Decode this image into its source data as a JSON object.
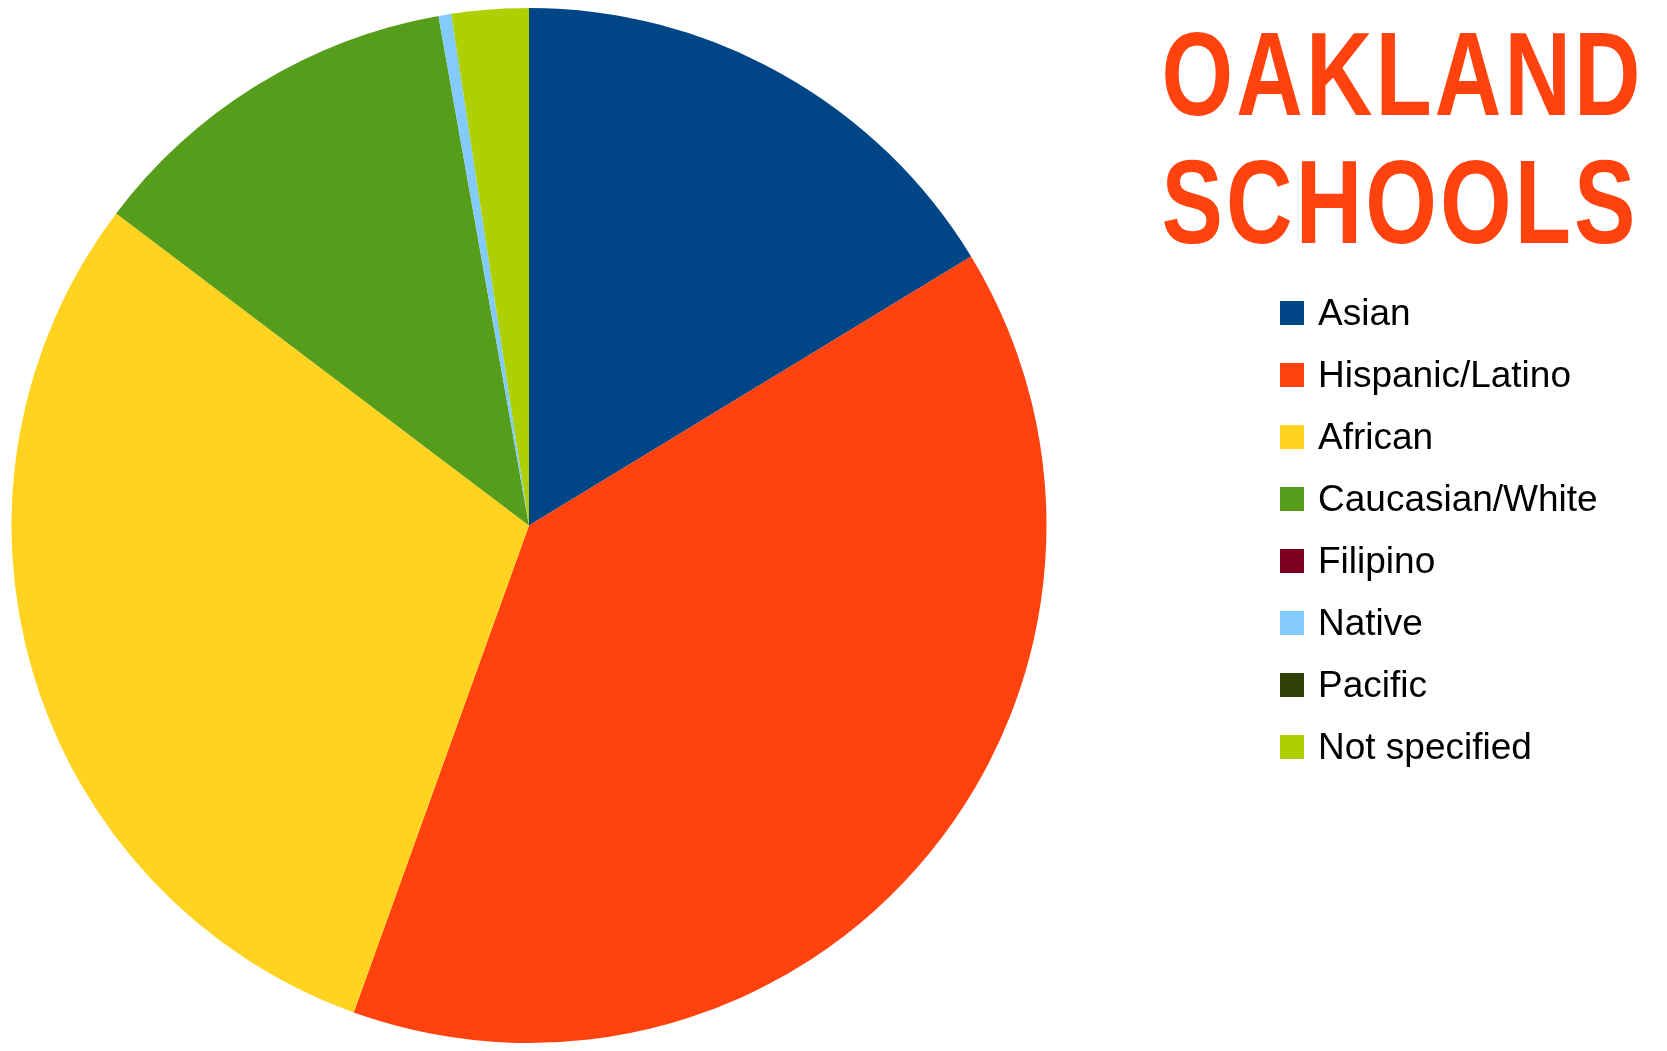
{
  "chart_data": {
    "type": "pie",
    "title": "OAKLAND SCHOOLS",
    "categories": [
      "Asian",
      "Hispanic/Latino",
      "African",
      "Caucasian/White",
      "Filipino",
      "Native",
      "Pacific",
      "Not specified"
    ],
    "values": [
      16.3,
      39.2,
      29.8,
      11.9,
      0,
      0.4,
      0,
      2.4
    ],
    "colors": [
      "#004586",
      "#ff420e",
      "#ffd320",
      "#579d1c",
      "#7e0021",
      "#83caff",
      "#314004",
      "#aecf00"
    ],
    "legend": "right"
  }
}
